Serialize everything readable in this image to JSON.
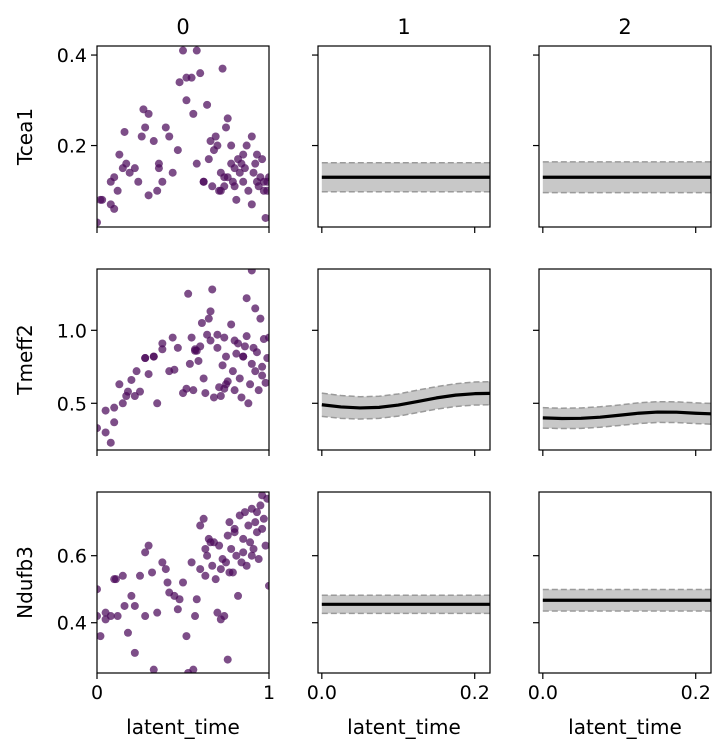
{
  "chart_data": {
    "type": "scatter",
    "columns": [
      "0",
      "1",
      "2"
    ],
    "rows": [
      "Tcea1",
      "Tmeff2",
      "Ndufb3"
    ],
    "xlabel": "latent_time",
    "scatter_xlim": [
      0,
      1
    ],
    "scatter_xticks": [
      "0",
      "1"
    ],
    "curve_xlim": [
      -0.005,
      0.22
    ],
    "curve_xticks": [
      "0.0",
      "0.2"
    ],
    "colors": {
      "scatter": "#4b0a5a",
      "band": "#c8c8c8",
      "band_edge": "#9a9a9a",
      "line": "#000000"
    },
    "panels": [
      {
        "gene": "Tcea1",
        "ylim": [
          0.02,
          0.42
        ],
        "yticks": [
          0.2,
          0.4
        ],
        "ytick_labels": [
          "0.2",
          "0.4"
        ],
        "scatter": {
          "x": [
            0.0,
            0.02,
            0.08,
            0.1,
            0.1,
            0.12,
            0.13,
            0.16,
            0.17,
            0.22,
            0.24,
            0.27,
            0.28,
            0.3,
            0.33,
            0.35,
            0.36,
            0.38,
            0.4,
            0.44,
            0.47,
            0.5,
            0.52,
            0.55,
            0.58,
            0.6,
            0.62,
            0.65,
            0.67,
            0.68,
            0.7,
            0.72,
            0.72,
            0.74,
            0.75,
            0.76,
            0.78,
            0.8,
            0.8,
            0.81,
            0.82,
            0.83,
            0.85,
            0.86,
            0.88,
            0.9,
            0.91,
            0.92,
            0.93,
            0.94,
            0.95,
            0.96,
            0.97,
            0.98,
            0.99,
            1.0,
            0.9,
            0.85,
            0.76,
            0.71,
            0.62,
            0.58,
            0.52,
            0.48,
            0.42,
            0.36,
            0.3,
            0.26,
            0.19,
            0.15,
            0.08,
            0.03,
            0.56,
            0.64,
            0.69,
            0.73,
            0.79,
            0.84,
            0.87,
            0.93,
            0.97,
            0.99,
            0.66,
            0.74,
            0.78
          ],
          "y": [
            0.03,
            0.08,
            0.07,
            0.13,
            0.06,
            0.1,
            0.18,
            0.23,
            0.16,
            0.15,
            0.12,
            0.28,
            0.24,
            0.27,
            0.21,
            0.1,
            0.15,
            0.12,
            0.24,
            0.14,
            0.19,
            0.41,
            0.35,
            0.35,
            0.41,
            0.36,
            0.12,
            0.17,
            0.11,
            0.19,
            0.2,
            0.14,
            0.1,
            0.11,
            0.24,
            0.26,
            0.2,
            0.15,
            0.11,
            0.08,
            0.17,
            0.14,
            0.12,
            0.15,
            0.1,
            0.22,
            0.14,
            0.16,
            0.12,
            0.11,
            0.13,
            0.17,
            0.1,
            0.04,
            0.12,
            0.13,
            0.07,
            0.18,
            0.13,
            0.1,
            0.12,
            0.16,
            0.3,
            0.34,
            0.22,
            0.16,
            0.09,
            0.22,
            0.14,
            0.15,
            0.12,
            0.08,
            0.27,
            0.29,
            0.22,
            0.37,
            0.12,
            0.16,
            0.2,
            0.18,
            0.12,
            0.1,
            0.21,
            0.13,
            0.16
          ]
        },
        "curves": [
          {
            "column": "1",
            "x": [
              0.0,
              0.05,
              0.1,
              0.15,
              0.22
            ],
            "mean": [
              0.13,
              0.13,
              0.13,
              0.13,
              0.13
            ],
            "lower": [
              0.098,
              0.098,
              0.098,
              0.098,
              0.098
            ],
            "upper": [
              0.162,
              0.162,
              0.162,
              0.162,
              0.162
            ]
          },
          {
            "column": "2",
            "x": [
              0.0,
              0.05,
              0.1,
              0.15,
              0.22
            ],
            "mean": [
              0.13,
              0.13,
              0.13,
              0.13,
              0.13
            ],
            "lower": [
              0.096,
              0.096,
              0.096,
              0.096,
              0.096
            ],
            "upper": [
              0.164,
              0.164,
              0.164,
              0.164,
              0.164
            ]
          }
        ]
      },
      {
        "gene": "Tmeff2",
        "ylim": [
          0.18,
          1.42
        ],
        "yticks": [
          0.5,
          1.0
        ],
        "ytick_labels": [
          "0.5",
          "1.0"
        ],
        "scatter": {
          "x": [
            0.0,
            0.05,
            0.08,
            0.1,
            0.13,
            0.15,
            0.17,
            0.2,
            0.22,
            0.25,
            0.28,
            0.3,
            0.33,
            0.35,
            0.38,
            0.42,
            0.45,
            0.47,
            0.5,
            0.52,
            0.54,
            0.55,
            0.57,
            0.59,
            0.6,
            0.62,
            0.63,
            0.65,
            0.66,
            0.68,
            0.7,
            0.71,
            0.72,
            0.73,
            0.74,
            0.75,
            0.76,
            0.78,
            0.79,
            0.8,
            0.81,
            0.82,
            0.83,
            0.84,
            0.85,
            0.86,
            0.87,
            0.88,
            0.89,
            0.9,
            0.91,
            0.92,
            0.93,
            0.94,
            0.95,
            0.96,
            0.97,
            0.98,
            0.99,
            1.0,
            0.9,
            0.87,
            0.8,
            0.75,
            0.7,
            0.66,
            0.61,
            0.57,
            0.53,
            0.44,
            0.38,
            0.33,
            0.28,
            0.23,
            0.18,
            0.1,
            0.05,
            0.56,
            0.67,
            0.74,
            0.85,
            0.92,
            0.96,
            0.58,
            0.64
          ],
          "y": [
            0.33,
            0.3,
            0.23,
            0.37,
            0.63,
            0.5,
            0.55,
            0.66,
            0.55,
            0.58,
            0.81,
            0.7,
            0.82,
            0.5,
            0.87,
            0.72,
            0.73,
            0.88,
            0.57,
            0.6,
            0.77,
            0.95,
            0.87,
            0.79,
            0.89,
            0.67,
            0.57,
            1.08,
            0.93,
            0.54,
            0.97,
            0.61,
            0.55,
            0.76,
            0.6,
            0.82,
            0.65,
            1.04,
            0.72,
            0.59,
            0.84,
            0.91,
            0.67,
            0.54,
            0.82,
            0.89,
            0.96,
            0.5,
            0.63,
            0.77,
            0.88,
            0.72,
            0.85,
            0.59,
            1.08,
            0.69,
            0.94,
            0.64,
            0.81,
            0.95,
            1.41,
            1.22,
            0.93,
            0.63,
            0.88,
            1.13,
            1.05,
            0.86,
            1.25,
            0.95,
            0.91,
            0.82,
            0.81,
            0.72,
            0.58,
            0.47,
            0.45,
            0.59,
            1.28,
            0.95,
            0.82,
            1.15,
            0.75,
            0.86,
            0.97
          ]
        },
        "curves": [
          {
            "column": "1",
            "x": [
              0.0,
              0.025,
              0.05,
              0.075,
              0.1,
              0.125,
              0.15,
              0.175,
              0.2,
              0.22
            ],
            "mean": [
              0.49,
              0.475,
              0.468,
              0.472,
              0.488,
              0.512,
              0.537,
              0.556,
              0.566,
              0.568
            ],
            "lower": [
              0.41,
              0.397,
              0.392,
              0.397,
              0.412,
              0.436,
              0.46,
              0.478,
              0.488,
              0.49
            ],
            "upper": [
              0.57,
              0.553,
              0.545,
              0.548,
              0.564,
              0.59,
              0.614,
              0.634,
              0.646,
              0.648
            ]
          },
          {
            "column": "2",
            "x": [
              0.0,
              0.025,
              0.05,
              0.075,
              0.1,
              0.125,
              0.15,
              0.175,
              0.2,
              0.22
            ],
            "mean": [
              0.4,
              0.396,
              0.397,
              0.405,
              0.418,
              0.432,
              0.44,
              0.439,
              0.432,
              0.428
            ],
            "lower": [
              0.33,
              0.327,
              0.328,
              0.336,
              0.348,
              0.361,
              0.369,
              0.368,
              0.361,
              0.357
            ],
            "upper": [
              0.47,
              0.466,
              0.468,
              0.476,
              0.488,
              0.503,
              0.511,
              0.51,
              0.503,
              0.499
            ]
          }
        ]
      },
      {
        "gene": "Ndufb3",
        "ylim": [
          0.25,
          0.79
        ],
        "yticks": [
          0.4,
          0.6
        ],
        "ytick_labels": [
          "0.4",
          "0.6"
        ],
        "scatter": {
          "x": [
            0.0,
            0.0,
            0.02,
            0.05,
            0.08,
            0.1,
            0.12,
            0.15,
            0.18,
            0.2,
            0.22,
            0.25,
            0.28,
            0.3,
            0.32,
            0.35,
            0.38,
            0.4,
            0.42,
            0.45,
            0.48,
            0.5,
            0.52,
            0.55,
            0.58,
            0.6,
            0.62,
            0.63,
            0.65,
            0.67,
            0.68,
            0.7,
            0.71,
            0.72,
            0.73,
            0.74,
            0.75,
            0.76,
            0.77,
            0.78,
            0.79,
            0.8,
            0.81,
            0.82,
            0.83,
            0.84,
            0.85,
            0.86,
            0.87,
            0.88,
            0.89,
            0.9,
            0.91,
            0.92,
            0.93,
            0.94,
            0.95,
            0.96,
            0.97,
            0.98,
            0.99,
            1.0,
            0.96,
            0.93,
            0.9,
            0.85,
            0.8,
            0.76,
            0.72,
            0.69,
            0.66,
            0.63,
            0.6,
            0.56,
            0.53,
            0.47,
            0.41,
            0.33,
            0.28,
            0.22,
            0.16,
            0.11,
            0.05,
            0.57,
            0.64,
            0.77
          ],
          "y": [
            0.5,
            0.42,
            0.36,
            0.43,
            0.42,
            0.53,
            0.42,
            0.54,
            0.37,
            0.48,
            0.45,
            0.54,
            0.61,
            0.63,
            0.55,
            0.43,
            0.58,
            0.56,
            0.49,
            0.48,
            0.47,
            0.52,
            0.36,
            0.58,
            0.47,
            0.69,
            0.71,
            0.54,
            0.65,
            0.57,
            0.64,
            0.43,
            0.63,
            0.56,
            0.59,
            0.42,
            0.58,
            0.66,
            0.7,
            0.62,
            0.55,
            0.67,
            0.6,
            0.48,
            0.72,
            0.58,
            0.65,
            0.73,
            0.57,
            0.69,
            0.64,
            0.74,
            0.62,
            0.7,
            0.67,
            0.59,
            0.75,
            0.68,
            0.71,
            0.63,
            0.77,
            0.51,
            0.78,
            0.73,
            0.6,
            0.61,
            0.68,
            0.29,
            0.41,
            0.53,
            0.64,
            0.62,
            0.56,
            0.26,
            0.25,
            0.44,
            0.52,
            0.26,
            0.42,
            0.31,
            0.45,
            0.53,
            0.41,
            0.42,
            0.6,
            0.55
          ]
        },
        "curves": [
          {
            "column": "1",
            "x": [
              0.0,
              0.05,
              0.1,
              0.15,
              0.22
            ],
            "mean": [
              0.455,
              0.455,
              0.455,
              0.455,
              0.455
            ],
            "lower": [
              0.428,
              0.428,
              0.428,
              0.428,
              0.428
            ],
            "upper": [
              0.482,
              0.482,
              0.482,
              0.482,
              0.482
            ]
          },
          {
            "column": "2",
            "x": [
              0.0,
              0.05,
              0.1,
              0.15,
              0.22
            ],
            "mean": [
              0.467,
              0.467,
              0.467,
              0.467,
              0.467
            ],
            "lower": [
              0.435,
              0.435,
              0.435,
              0.435,
              0.435
            ],
            "upper": [
              0.499,
              0.499,
              0.499,
              0.499,
              0.499
            ]
          }
        ]
      }
    ]
  }
}
